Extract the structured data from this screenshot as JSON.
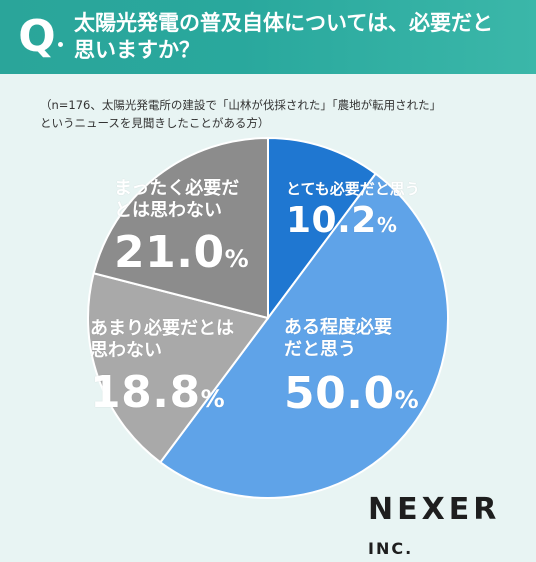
{
  "header": {
    "q_mark": "Q",
    "question": "太陽光発電の普及自体については、必要だと\n思いますか？"
  },
  "note": "（n=176、太陽光発電所の建設で「山林が伐採された」「農地が転用された」\nというニュースを見聞きしたことがある方）",
  "logo": {
    "name": "NEXER",
    "suffix": "INC."
  },
  "colors": {
    "header": "#2aa59a",
    "blue_dark": "#1f77d1",
    "blue_light": "#5fa3e8",
    "gray_light": "#a9a9a9",
    "gray_dark": "#8c8c8c"
  },
  "chart_data": {
    "type": "pie",
    "slices": [
      {
        "label": "とても必要だと思う",
        "value": 10.2,
        "display": "10.2",
        "color": "#1f77d1"
      },
      {
        "label": "ある程度必要\nだと思う",
        "value": 50.0,
        "display": "50.0",
        "color": "#5fa3e8"
      },
      {
        "label": "あまり必要だとは\n思わない",
        "value": 18.8,
        "display": "18.8",
        "color": "#a9a9a9"
      },
      {
        "label": "まったく必要だ\nとは思わない",
        "value": 21.0,
        "display": "21.0",
        "color": "#8c8c8c"
      }
    ],
    "unit": "%",
    "start_angle": "12 o'clock",
    "direction": "clockwise"
  }
}
